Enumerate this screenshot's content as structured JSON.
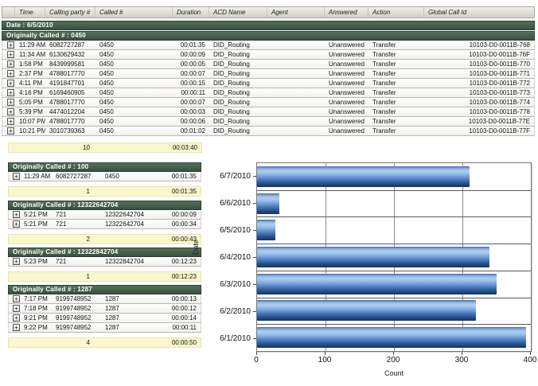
{
  "table": {
    "columns": [
      "",
      "Time",
      "Calling party #",
      "Called #",
      "Duration",
      "ACD Name",
      "Agent",
      "Answered",
      "Action",
      "Global Call Id"
    ],
    "expand_glyph": "+",
    "date_group_label": "Date : 6/5/2010",
    "groups": [
      {
        "label": "Originally Called # : 0450",
        "layout": "full",
        "rows": [
          {
            "time": "11:29 AM",
            "calling": "6082727287",
            "called": "0450",
            "duration": "00:01:35",
            "acd": "DID_Routing",
            "agent": "",
            "answered": "Unanswered",
            "action": "Transfer",
            "global_call_id": "10103-D0-0011B-768"
          },
          {
            "time": "11:34 AM",
            "calling": "6130629432",
            "called": "0450",
            "duration": "00:00:09",
            "acd": "DID_Routing",
            "agent": "",
            "answered": "Unanswered",
            "action": "Transfer",
            "global_call_id": "10103-D0-0011B-76F"
          },
          {
            "time": "1:58 PM",
            "calling": "8439999581",
            "called": "0450",
            "duration": "00:00:05",
            "acd": "DID_Routing",
            "agent": "",
            "answered": "Unanswered",
            "action": "Transfer",
            "global_call_id": "10103-D0-0011B-770"
          },
          {
            "time": "2:37 PM",
            "calling": "4788017770",
            "called": "0450",
            "duration": "00:00:07",
            "acd": "DID_Routing",
            "agent": "",
            "answered": "Unanswered",
            "action": "Transfer",
            "global_call_id": "10103-D0-0011B-771"
          },
          {
            "time": "4:11 PM",
            "calling": "4191847701",
            "called": "0450",
            "duration": "00:00:15",
            "acd": "DID_Routing",
            "agent": "",
            "answered": "Unanswered",
            "action": "Transfer",
            "global_call_id": "10103-D0-0011B-772"
          },
          {
            "time": "4:16 PM",
            "calling": "6169460905",
            "called": "0450",
            "duration": "00:00:11",
            "acd": "DID_Routing",
            "agent": "",
            "answered": "Unanswered",
            "action": "Transfer",
            "global_call_id": "10103-D0-0011B-773"
          },
          {
            "time": "5:05 PM",
            "calling": "4788017770",
            "called": "0450",
            "duration": "00:00:07",
            "acd": "DID_Routing",
            "agent": "",
            "answered": "Unanswered",
            "action": "Transfer",
            "global_call_id": "10103-D0-0011B-774"
          },
          {
            "time": "5:39 PM",
            "calling": "4474012204",
            "called": "0450",
            "duration": "00:00:03",
            "acd": "DID_Routing",
            "agent": "",
            "answered": "Unanswered",
            "action": "Transfer",
            "global_call_id": "10103-D0-0011B-778"
          },
          {
            "time": "10:07 PM",
            "calling": "4788017770",
            "called": "0450",
            "duration": "00:00:06",
            "acd": "DID_Routing",
            "agent": "",
            "answered": "Unanswered",
            "action": "Transfer",
            "global_call_id": "10103-D0-0011B-77E"
          },
          {
            "time": "10:21 PM",
            "calling": "3010739363",
            "called": "0450",
            "duration": "00:01:02",
            "acd": "DID_Routing",
            "agent": "",
            "answered": "Unanswered",
            "action": "Transfer",
            "global_call_id": "10103-D0-0011B-77F"
          }
        ],
        "summary_count": "10",
        "summary_duration": "00:03:40"
      },
      {
        "label": "Originally Called # : 100",
        "layout": "narrow",
        "rows": [
          {
            "time": "11:29 AM",
            "calling": "6082727287",
            "called": "0450",
            "duration": "00:01:35"
          }
        ],
        "summary_count": "1",
        "summary_duration": "00:01:35"
      },
      {
        "label": "Originally Called # : 12322642704",
        "layout": "narrow",
        "rows": [
          {
            "time": "5:21 PM",
            "calling": "721",
            "called": "12322642704",
            "duration": "00:00:09"
          },
          {
            "time": "5:21 PM",
            "calling": "721",
            "called": "12322642704",
            "duration": "00:00:34"
          }
        ],
        "summary_count": "2",
        "summary_duration": "00:00:43"
      },
      {
        "label": "Originally Called # : 12322842704",
        "layout": "narrow",
        "rows": [
          {
            "time": "5:23 PM",
            "calling": "721",
            "called": "12322842704",
            "duration": "00:12:23"
          }
        ],
        "summary_count": "1",
        "summary_duration": "00:12:23"
      },
      {
        "label": "Originally Called # : 1287",
        "layout": "narrow",
        "rows": [
          {
            "time": "7:17 PM",
            "calling": "9199748952",
            "called": "1287",
            "duration": "00:00:13"
          },
          {
            "time": "7:18 PM",
            "calling": "9199748952",
            "called": "1287",
            "duration": "00:00:12"
          },
          {
            "time": "9:21 PM",
            "calling": "9199748952",
            "called": "1287",
            "duration": "00:00:14"
          },
          {
            "time": "9:22 PM",
            "calling": "9199748952",
            "called": "1287",
            "duration": "00:00:11"
          }
        ],
        "summary_count": "4",
        "summary_duration": "00:00:50"
      }
    ]
  },
  "chart_data": {
    "type": "bar",
    "orientation": "horizontal",
    "title": "",
    "categories": [
      "6/7/2010",
      "6/6/2010",
      "6/5/2010",
      "6/4/2010",
      "6/3/2010",
      "6/2/2010",
      "6/1/2010"
    ],
    "values": [
      310,
      32,
      27,
      340,
      350,
      320,
      393
    ],
    "xlabel": "Count",
    "ylabel": "Date",
    "xlim": [
      0,
      400
    ],
    "xticks": [
      0,
      100,
      200,
      300,
      400
    ],
    "grid": true,
    "legend": false,
    "bar_color": "#4f86c6"
  },
  "colors": {
    "group_header_bg": "#3f5c46",
    "summary_bg": "#f8f8cc",
    "header_row_bg": "#d9d6cd",
    "bar_blue": "#4f86c6",
    "grid_line": "#808080"
  }
}
